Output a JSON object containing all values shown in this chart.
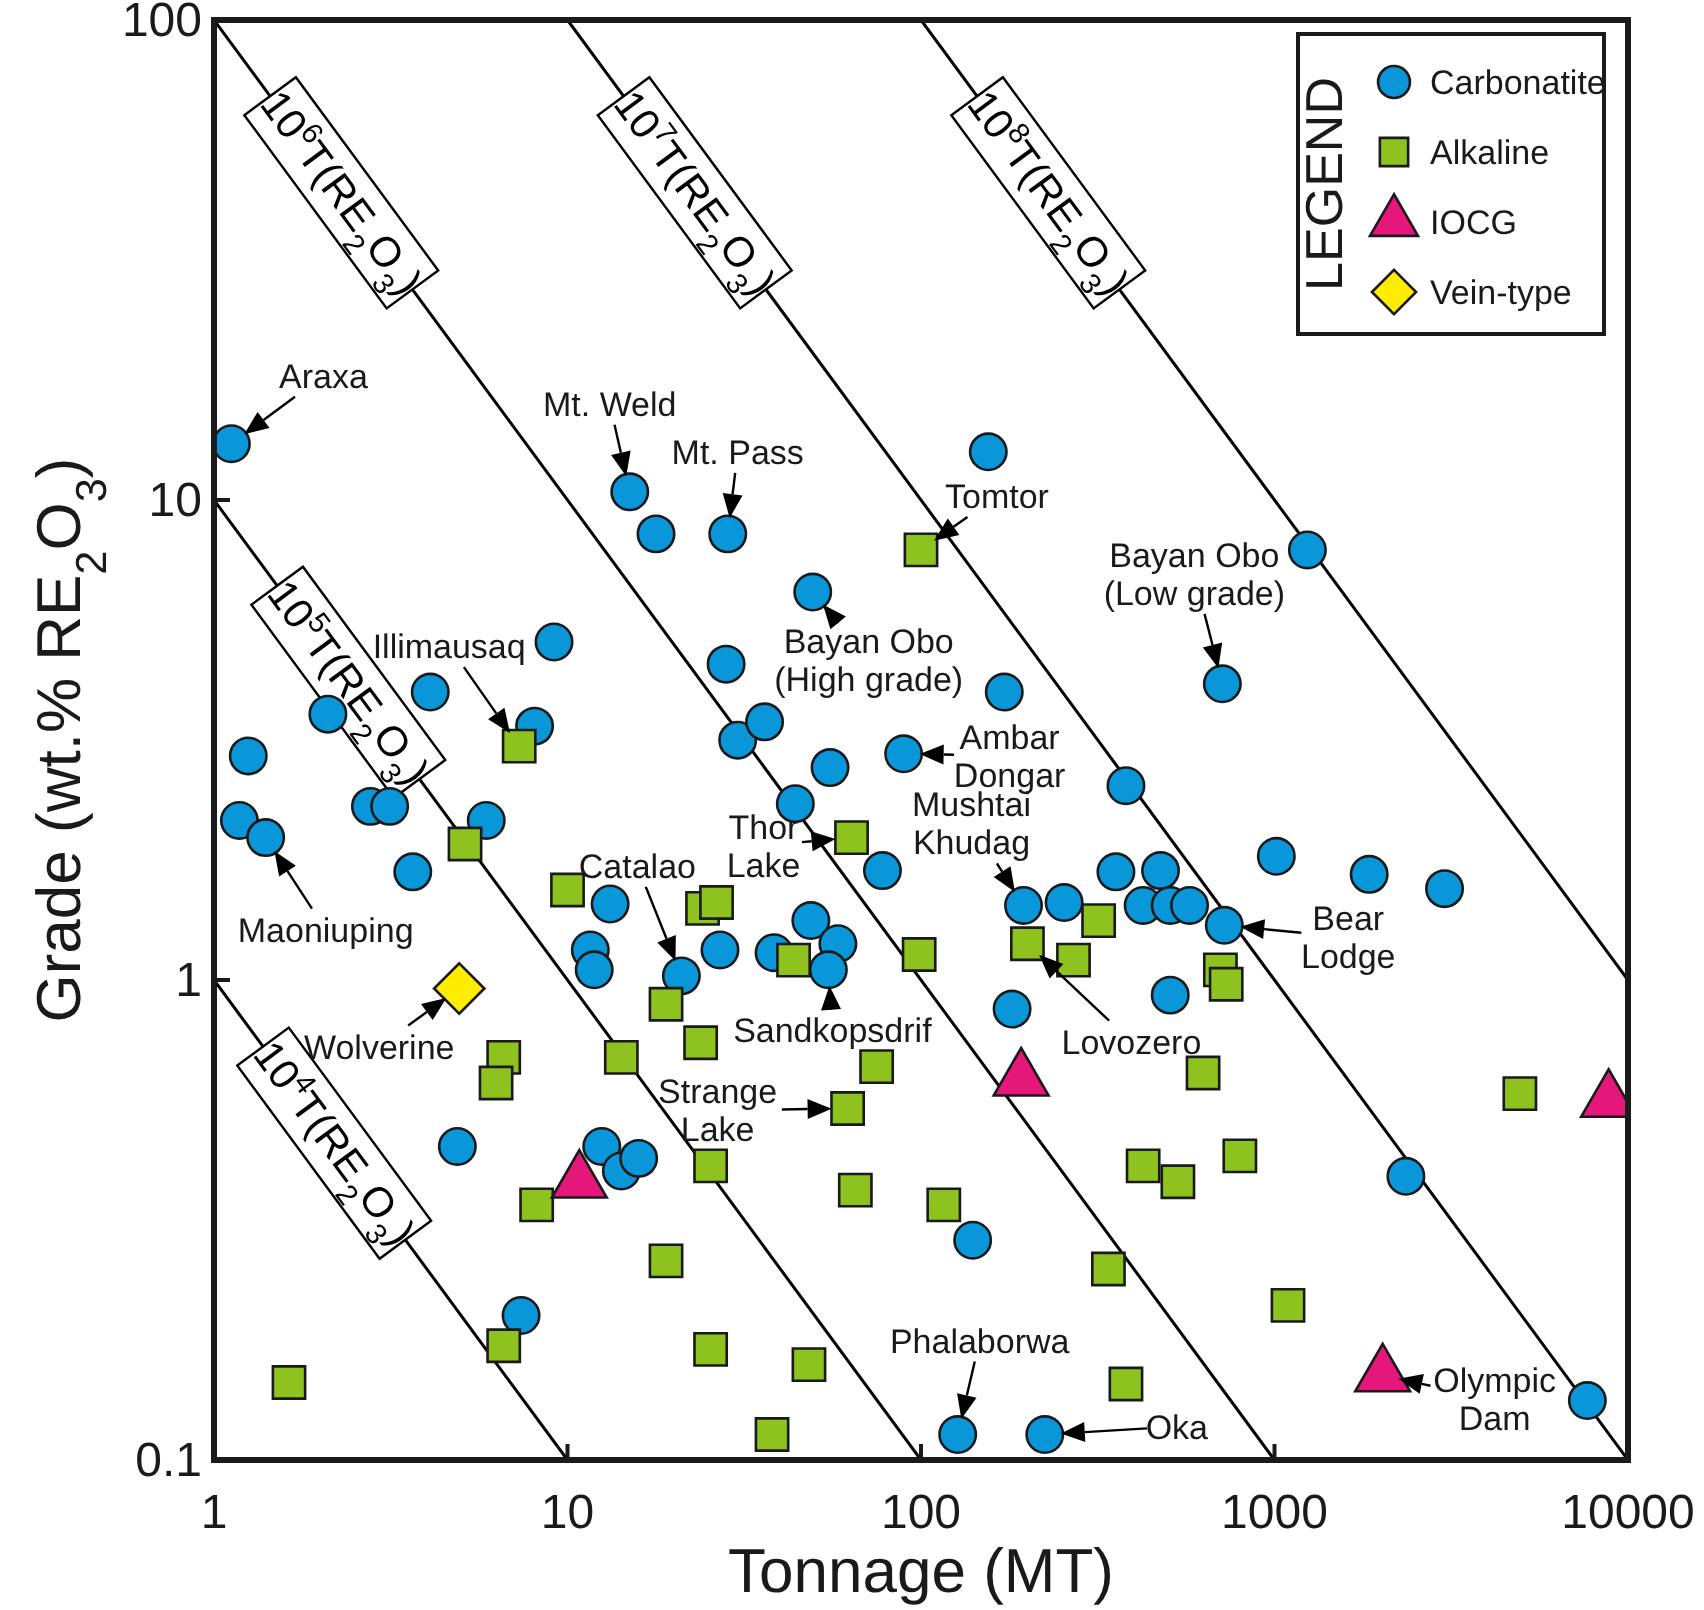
{
  "chart_data": {
    "type": "scatter",
    "xlabel": "Tonnage (MT)",
    "ylabel": "Grade (wt.% RE$_{2}$O$_{3}$)",
    "legend_title": "LEGEND",
    "log": "xy",
    "grid": false,
    "legend": "top right",
    "xlim": [
      1,
      10000
    ],
    "ylim": [
      0.1,
      100
    ],
    "xticks": [
      1,
      10,
      100,
      1000,
      10000
    ],
    "yticks": [
      0.1,
      1,
      10,
      100
    ],
    "series": [
      {
        "name": "10$^{4}$T(RE$_{2}$O$_{3}$)",
        "type": "line",
        "color": "#000000",
        "marker": "none",
        "x": [
          1,
          10
        ],
        "values": [
          1,
          0.1
        ]
      },
      {
        "name": "10$^{5}$T(RE$_{2}$O$_{3}$)",
        "type": "line",
        "color": "#000000",
        "marker": "none",
        "x": [
          1,
          100
        ],
        "values": [
          10,
          0.1
        ]
      },
      {
        "name": "10$^{6}$T(RE$_{2}$O$_{3}$)",
        "type": "line",
        "color": "#000000",
        "marker": "none",
        "x": [
          1,
          1000
        ],
        "values": [
          100,
          0.1
        ]
      },
      {
        "name": "10$^{7}$T(RE$_{2}$O$_{3}$)",
        "type": "line",
        "color": "#000000",
        "marker": "none",
        "x": [
          10,
          10000
        ],
        "values": [
          100,
          0.1
        ]
      },
      {
        "name": "10$^{8}$T(RE$_{2}$O$_{3}$)",
        "type": "line",
        "color": "#000000",
        "marker": "none",
        "x": [
          100,
          10000
        ],
        "values": [
          100,
          1
        ]
      },
      {
        "name": "Carbonatite",
        "type": "scatter",
        "color": "#0a97d9",
        "marker": "circle",
        "x": [
          1.12,
          1.18,
          1.25,
          1.4,
          2.1,
          2.77,
          3.14,
          3.65,
          4.09,
          5.89,
          9.16,
          8.07,
          4.88,
          7.39,
          12.5,
          14.2,
          15.9,
          13.2,
          11.6,
          11.9,
          21,
          15,
          17.8,
          28.4,
          155,
          49.4,
          28.1,
          172,
          30.3,
          36.1,
          89.3,
          55.3,
          44.1,
          77.8,
          48.8,
          58.2,
          38.4,
          27,
          54.7,
          380,
          195,
          254,
          356,
          476,
          425,
          507,
          575,
          721,
          1012,
          1853,
          3027,
          181,
          507,
          2353,
          7674,
          127,
          224,
          140,
          712,
          1239
        ],
        "values": [
          13.1,
          2.15,
          2.93,
          1.98,
          3.58,
          2.3,
          2.3,
          1.68,
          3.98,
          2.15,
          5.06,
          3.38,
          0.45,
          0.2,
          0.45,
          0.4,
          0.425,
          1.44,
          1.155,
          1.05,
          1.02,
          10.4,
          8.5,
          8.5,
          12.6,
          6.43,
          4.55,
          3.98,
          3.16,
          3.45,
          2.96,
          2.77,
          2.33,
          1.69,
          1.33,
          1.19,
          1.14,
          1.155,
          1.05,
          2.54,
          1.43,
          1.45,
          1.68,
          1.69,
          1.43,
          1.43,
          1.43,
          1.3,
          1.81,
          1.66,
          1.55,
          0.87,
          0.93,
          0.39,
          0.133,
          0.113,
          0.113,
          0.287,
          4.14,
          7.87
        ]
      },
      {
        "name": "Alkaline",
        "type": "scatter",
        "color": "#8dc21f",
        "marker": "square",
        "x": [
          7.3,
          5.13,
          10,
          19,
          14.2,
          6.6,
          6.28,
          8.18,
          19,
          6.6,
          1.63,
          63.6,
          24.1,
          26.4,
          98.8,
          23.8,
          74.9,
          62,
          25.4,
          65.2,
          116,
          25.4,
          48.2,
          37.9,
          200,
          270,
          318,
          703,
          730,
          425,
          533,
          628,
          798,
          4945,
          1092,
          339,
          380,
          100,
          43.6
        ],
        "values": [
          3.07,
          1.92,
          1.54,
          0.89,
          0.69,
          0.69,
          0.61,
          0.34,
          0.26,
          0.173,
          0.145,
          1.98,
          1.41,
          1.45,
          1.13,
          0.74,
          0.66,
          0.54,
          0.41,
          0.365,
          0.34,
          0.17,
          0.158,
          0.113,
          1.19,
          1.1,
          1.33,
          1.05,
          0.98,
          0.41,
          0.38,
          0.64,
          0.43,
          0.58,
          0.21,
          0.25,
          0.144,
          7.87,
          1.1
        ]
      },
      {
        "name": "IOCG",
        "type": "scatter",
        "color": "#e5177b",
        "marker": "triangle",
        "x": [
          10.8,
          192,
          8813,
          2023
        ],
        "values": [
          0.38,
          0.62,
          0.56,
          0.15
        ]
      },
      {
        "name": "Vein-type",
        "type": "scatter",
        "color": "#ffed00",
        "marker": "diamond",
        "x": [
          4.94
        ],
        "values": [
          0.96
        ]
      }
    ],
    "annotations": [
      {
        "text": "Araxa",
        "x": 1.12,
        "y": 13.1
      },
      {
        "text": "Mt. Weld",
        "x": 15,
        "y": 10.4
      },
      {
        "text": "Mt. Pass",
        "x": 28.4,
        "y": 8.5
      },
      {
        "text": "Tomtor",
        "x": 100,
        "y": 7.87
      },
      {
        "text": "Bayan Obo\n(High grade)",
        "x": 49.4,
        "y": 6.43
      },
      {
        "text": "Bayan Obo\n(Low grade)",
        "x": 712,
        "y": 4.14
      },
      {
        "text": "Illimausaq",
        "x": 7.3,
        "y": 3.07
      },
      {
        "text": "Ambar\nDongar",
        "x": 89.3,
        "y": 2.96
      },
      {
        "text": "Maoniuping",
        "x": 1.4,
        "y": 1.98
      },
      {
        "text": "Thor\nLake",
        "x": 63.6,
        "y": 1.98
      },
      {
        "text": "Catalao",
        "x": 21,
        "y": 1.02
      },
      {
        "text": "Mushtai\nKhudag",
        "x": 195,
        "y": 1.43
      },
      {
        "text": "Bear\nLodge",
        "x": 721,
        "y": 1.3
      },
      {
        "text": "Wolverine",
        "x": 4.94,
        "y": 0.96
      },
      {
        "text": "Sandkopsdrif",
        "x": 54.7,
        "y": 1.05
      },
      {
        "text": "Lovozero",
        "x": 200,
        "y": 1.19
      },
      {
        "text": "Strange\nLake",
        "x": 62,
        "y": 0.54
      },
      {
        "text": "Phalaborwa",
        "x": 127,
        "y": 0.113
      },
      {
        "text": "Oka",
        "x": 224,
        "y": 0.113
      },
      {
        "text": "Olympic\nDam",
        "x": 2023,
        "y": 0.15
      }
    ]
  }
}
